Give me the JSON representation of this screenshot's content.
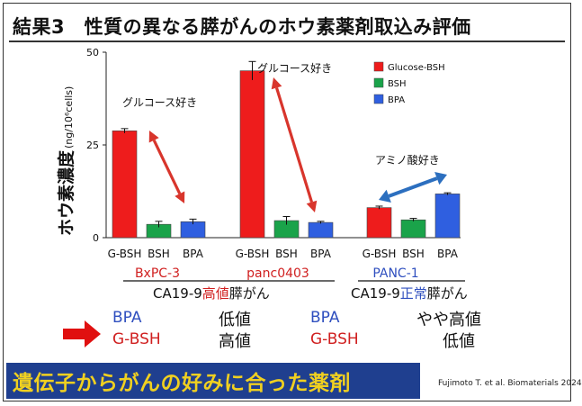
{
  "slide": {
    "title": "結果3　性質の異なる膵がんのホウ素薬剤取込み評価",
    "banner": "遺伝子からがんの好みに合った薬剤",
    "citation": "Fujimoto T. et al. Biomaterials 2024"
  },
  "chart_data": {
    "type": "bar",
    "ylabel_main": "ホウ素濃度",
    "ylabel_unit": "(ng/10⁶cells)",
    "ylim": [
      0,
      50
    ],
    "yticks": [
      0,
      25,
      50
    ],
    "groups": [
      {
        "name": "BxPC-3",
        "categories": [
          "G-BSH",
          "BSH",
          "BPA"
        ],
        "values": [
          28.8,
          3.6,
          4.3
        ],
        "errors": [
          0.6,
          0.8,
          0.7
        ]
      },
      {
        "name": "panc0403",
        "categories": [
          "G-BSH",
          "BSH",
          "BPA"
        ],
        "values": [
          45.0,
          4.6,
          4.1
        ],
        "errors": [
          2.5,
          1.1,
          0.3
        ]
      },
      {
        "name": "PANC-1",
        "categories": [
          "G-BSH",
          "BSH",
          "BPA"
        ],
        "values": [
          8.1,
          4.8,
          11.8
        ],
        "errors": [
          0.4,
          0.4,
          0.3
        ]
      }
    ],
    "legend": [
      {
        "name": "Glucose-BSH",
        "color": "#ee1c1c"
      },
      {
        "name": "BSH",
        "color": "#1aa34a"
      },
      {
        "name": "BPA",
        "color": "#2f5fe0"
      }
    ],
    "legend_position": "top-right",
    "annotations": {
      "glucose_1": "グルコース好き",
      "glucose_2": "グルコース好き",
      "amino": "アミノ酸好き"
    },
    "group_label_colors": {
      "high": "#d02020",
      "normal": "#2f4fbf"
    },
    "bracket_labels": {
      "left_pre": "CA19-9",
      "left_em": "高値",
      "left_post": "膵がん",
      "right_pre": "CA19-9",
      "right_em": "正常",
      "right_post": "膵がん"
    }
  },
  "summary": {
    "left": {
      "row1_drug": "BPA",
      "row1_level": "低値",
      "row2_drug": "G-BSH",
      "row2_level": "高値"
    },
    "right": {
      "row1_drug": "BPA",
      "row1_level": "やや高値",
      "row2_drug": "G-BSH",
      "row2_level": "低値"
    }
  }
}
